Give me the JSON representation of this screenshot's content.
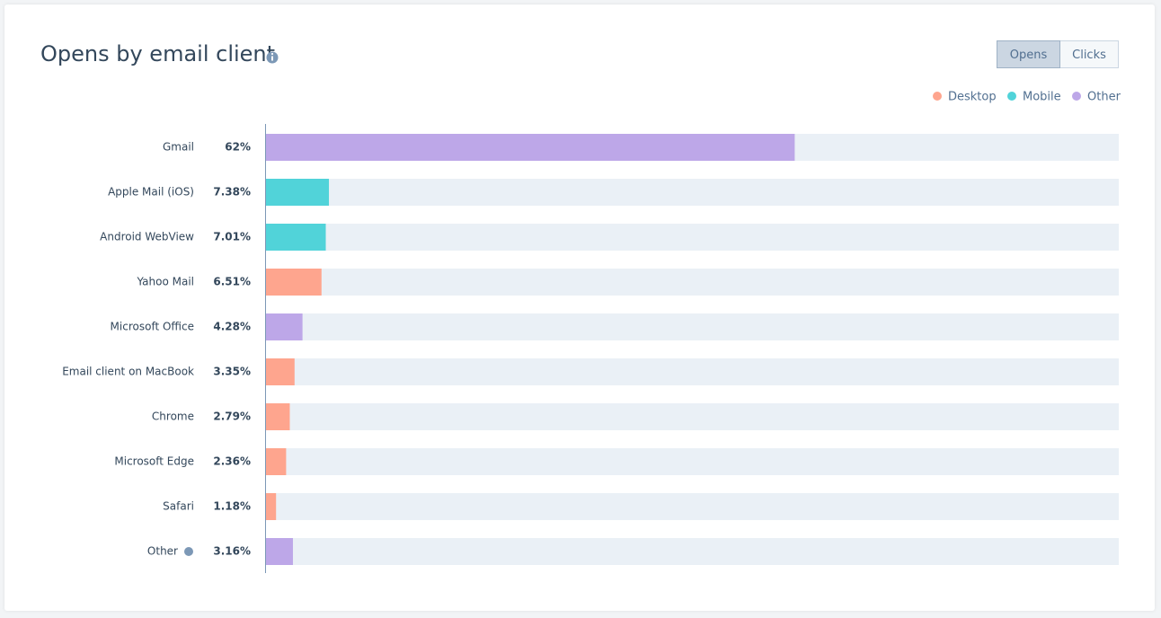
{
  "controls": {
    "buttons": [
      "Opens",
      "Clicks"
    ],
    "active": 0
  },
  "chart_data": {
    "type": "bar",
    "orientation": "horizontal",
    "title": "Opens by email client",
    "categories": [
      "Gmail",
      "Apple Mail (iOS)",
      "Android WebView",
      "Yahoo Mail",
      "Microsoft Office",
      "Email client on MacBook",
      "Chrome",
      "Microsoft Edge",
      "Safari",
      "Other"
    ],
    "xlim": [
      0,
      100
    ],
    "series": [
      {
        "name": "Desktop",
        "color": "#fea58e",
        "values": [
          null,
          null,
          null,
          6.51,
          null,
          3.35,
          2.79,
          2.36,
          1.18,
          null
        ],
        "value_labels": [
          null,
          null,
          null,
          "6.51%",
          null,
          "3.35%",
          "2.79%",
          "2.36%",
          "1.18%",
          null
        ]
      },
      {
        "name": "Mobile",
        "color": "#51d3d9",
        "values": [
          null,
          7.38,
          7.01,
          null,
          null,
          null,
          null,
          null,
          null,
          null
        ],
        "value_labels": [
          null,
          "7.38%",
          "7.01%",
          null,
          null,
          null,
          null,
          null,
          null,
          null
        ]
      },
      {
        "name": "Other",
        "color": "#bda7e8",
        "values": [
          62,
          null,
          null,
          null,
          4.28,
          null,
          null,
          null,
          null,
          3.16
        ],
        "value_labels": [
          "62%",
          null,
          null,
          null,
          "4.28%",
          null,
          null,
          null,
          null,
          "3.16%"
        ]
      }
    ],
    "legend_position": "top-right"
  }
}
